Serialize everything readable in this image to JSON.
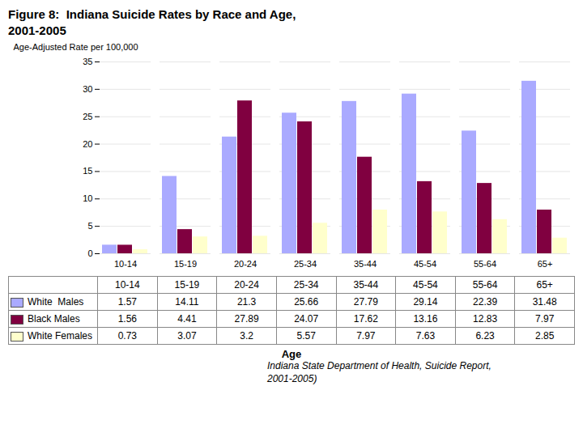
{
  "chart_data": {
    "type": "bar",
    "title": "Figure 8:  Indiana Suicide Rates by Race and Age,\n2001-2005",
    "subtitle": "Indiana State Department of Health, Suicide Report,\n2001-2005)",
    "categories": [
      "10-14",
      "15-19",
      "20-24",
      "25-34",
      "35-44",
      "45-54",
      "55-64",
      "65+"
    ],
    "series": [
      {
        "name": "White  Males",
        "color": "#aaaaff",
        "values": [
          1.57,
          14.11,
          21.3,
          25.66,
          27.79,
          29.14,
          22.39,
          31.48
        ]
      },
      {
        "name": "Black Males",
        "color": "#800040",
        "values": [
          1.56,
          4.41,
          27.89,
          24.07,
          17.62,
          13.16,
          12.83,
          7.97
        ]
      },
      {
        "name": "White Females",
        "color": "#ffffcc",
        "values": [
          0.73,
          3.07,
          3.2,
          5.57,
          7.97,
          7.63,
          6.23,
          2.85
        ]
      }
    ],
    "xlabel": "Age",
    "ylabel": "Age-Adjusted Rate per 100,000",
    "ylim": [
      0,
      35
    ],
    "yticks": [
      0,
      5,
      10,
      15,
      20,
      25,
      30,
      35
    ],
    "grid": true,
    "legend": "bottom"
  }
}
